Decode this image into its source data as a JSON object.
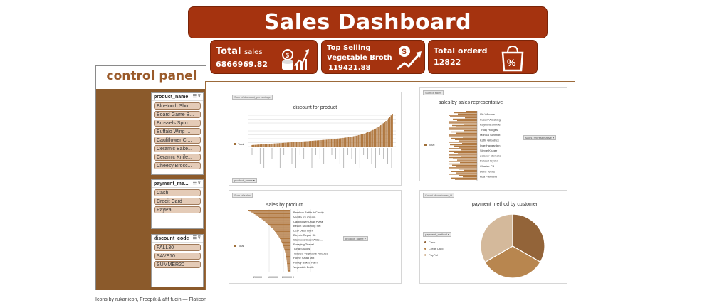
{
  "title": "Sales Dashboard",
  "kpis": {
    "total_sales": {
      "label_bold": "Total",
      "label_rest": "sales",
      "value": "6866969.82"
    },
    "top_selling": {
      "line1": "Top Selling",
      "line2": "Vegetable Broth",
      "value": "119421.88"
    },
    "total_orders": {
      "label": "Total orderd",
      "value": "12822"
    }
  },
  "control_panel": {
    "title": "control panel",
    "product_slicer": {
      "header": "product_name",
      "items": [
        "Bluetooth Sho...",
        "Board Game B...",
        "Brussels Spro...",
        "Buffalo Wing ...",
        "Cauliflower Cr...",
        "Ceramic Bake...",
        "Ceramic Knife...",
        "Cheesy Brocc..."
      ]
    },
    "payment_slicer": {
      "header": "payment_me...",
      "items": [
        "Cash",
        "Credit Card",
        "PayPal"
      ]
    },
    "discount_slicer": {
      "header": "discount_code",
      "items": [
        "FALL30",
        "SAVE10",
        "SUMMER20"
      ]
    }
  },
  "charts": {
    "discount": {
      "title": "discount for product",
      "tag": "Sum of discount_percentage",
      "legend": "Total",
      "ddl": "product_name"
    },
    "rep": {
      "title": "sales by sales representative",
      "tag": "Sum of sales",
      "legend": "Total",
      "ddl": "sales_representative",
      "names": [
        "Vic Window",
        "Susan Watching",
        "Raynard Shuttle",
        "Trudy Hodges",
        "Monica Schmidt",
        "Kathi Gilpatrick",
        "Inge Haygarden",
        "Stevie Kruger",
        "Zolaher Idemore",
        "Dulcie Hayden",
        "Charise Pill",
        "Doris Teens",
        "Ada Freeland"
      ]
    },
    "product": {
      "title": "sales by product",
      "tag": "Sum of sales",
      "legend": "Total",
      "ddl": "product_name",
      "names": [
        "Bamboo Bathtub Caddy",
        "Vanilla Ice Cream",
        "Cauliflower Crust Pizza",
        "Beach Snorkeling Set",
        "LED Desk Light",
        "Bicycle Repair Kit",
        "Stainless Steel Water...",
        "Foraging Trowel",
        "Tuna Snacks",
        "Toasted Vegetable Noodles",
        "Home Salad Mix",
        "Honey Baked Ham",
        "Vegetable Broth"
      ],
      "ticks": [
        "200000",
        "1000000",
        "2000000",
        "0"
      ]
    },
    "payment": {
      "title": "payment method by customer",
      "tag": "Count of customer_id",
      "ddl": "payment_method",
      "legend_items": [
        "Cash",
        "Credit Card",
        "PayPal"
      ]
    }
  },
  "chart_data": {
    "type": "pie",
    "title": "payment method by customer",
    "categories": [
      "Cash",
      "Credit Card",
      "PayPal"
    ],
    "values": [
      33.3,
      33.3,
      33.4
    ]
  },
  "footer": "Icons by rukanicon, Freepik & afif fudin — Flaticon",
  "colors": {
    "brand": "#a5330f",
    "panel": "#8b5a2b",
    "slicer": "#e4cbb7",
    "bar": "#b07840"
  }
}
